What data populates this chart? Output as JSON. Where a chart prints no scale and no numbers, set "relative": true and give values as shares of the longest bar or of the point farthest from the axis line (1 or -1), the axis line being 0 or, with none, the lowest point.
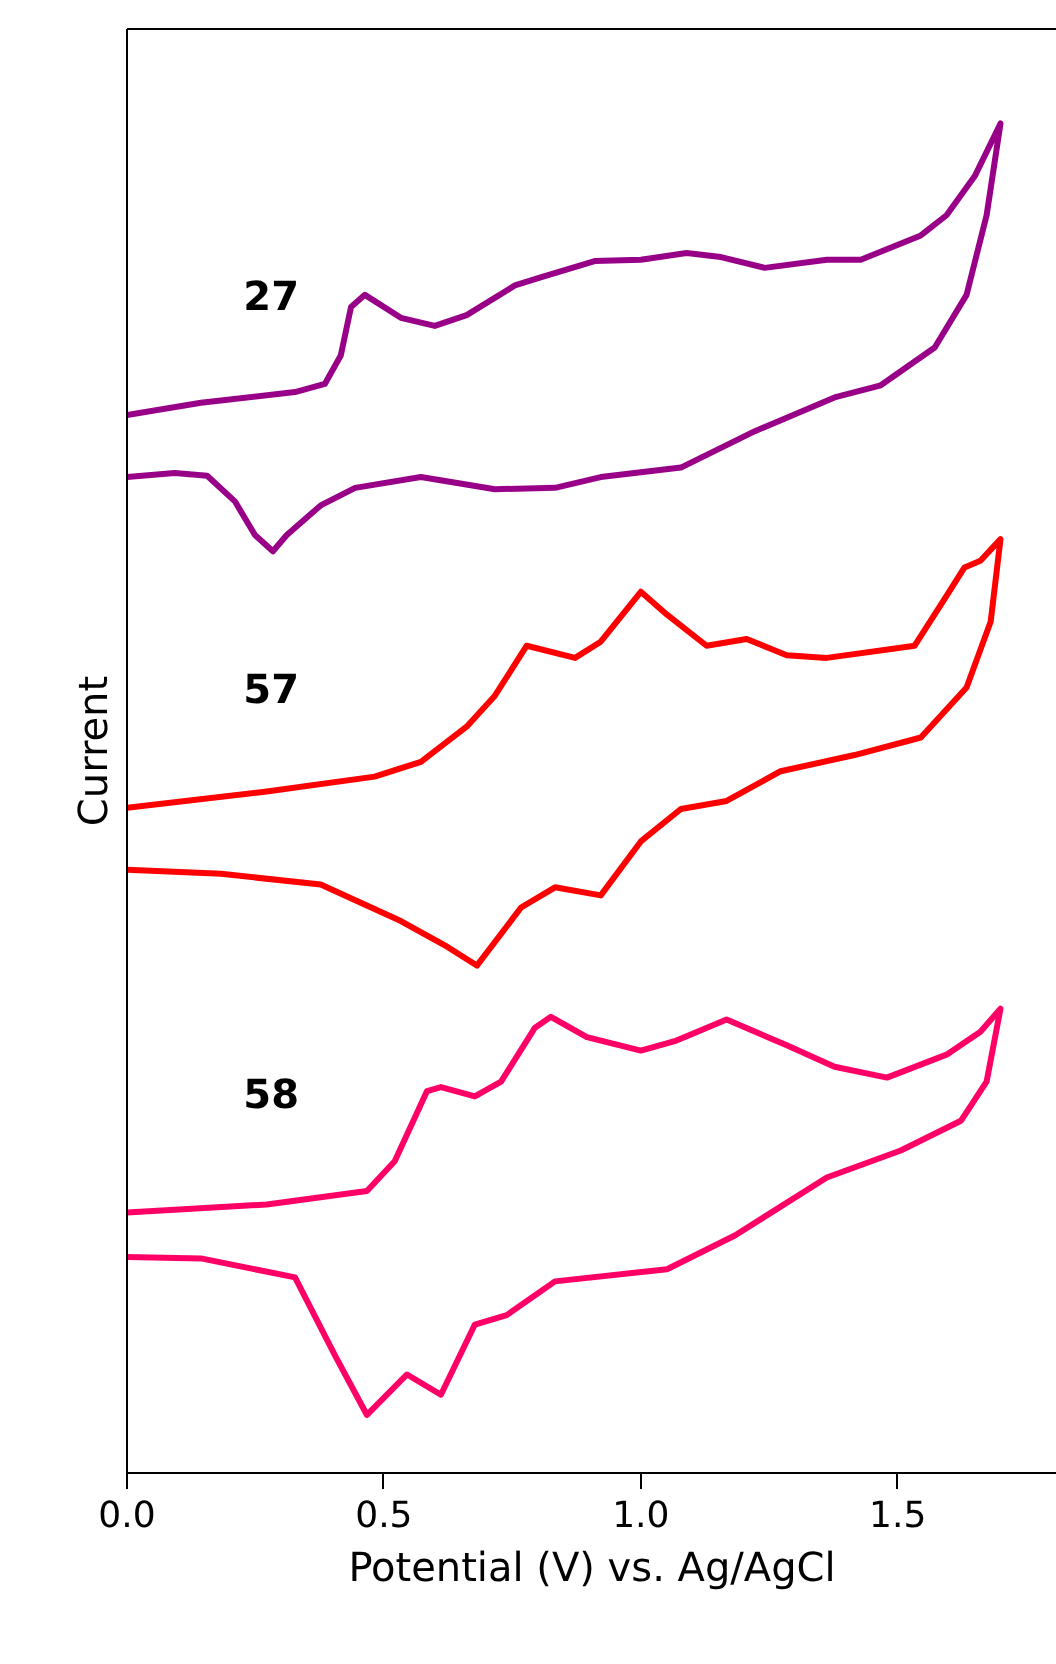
{
  "chart_data": {
    "type": "line",
    "relative": true,
    "xlabel": "Potential (V) vs. Ag/AgCl",
    "ylabel": "Current",
    "xlim": [
      0,
      1.81
    ],
    "xticks": [
      {
        "value": 0,
        "label": "0.0"
      },
      {
        "value": 0.5,
        "label": "0.5"
      },
      {
        "value": 1,
        "label": "1.0"
      },
      {
        "value": 1.5,
        "label": "1.5"
      }
    ],
    "tick_labels": "x",
    "grid": false,
    "series": [
      {
        "name": "27",
        "color": "#990088",
        "x": [
          0,
          0.144,
          0.327,
          0.385,
          0.416,
          0.436,
          0.463,
          0.533,
          0.599,
          0.661,
          0.755,
          0.805,
          0.91,
          1.0,
          1.089,
          1.156,
          1.241,
          1.362,
          1.428,
          1.545,
          1.595,
          1.65,
          1.7,
          1.673,
          1.634,
          1.572,
          1.467,
          1.377,
          1.222,
          1.078,
          0.922,
          0.833,
          0.716,
          0.572,
          0.444,
          0.377,
          0.311,
          0.284,
          0.249,
          0.21,
          0.156,
          0.093,
          0
        ],
        "values": [
          0.784,
          0.793,
          0.801,
          0.807,
          0.828,
          0.864,
          0.873,
          0.856,
          0.85,
          0.858,
          0.88,
          0.886,
          0.898,
          0.899,
          0.904,
          0.901,
          0.893,
          0.899,
          0.899,
          0.917,
          0.932,
          0.961,
          1.0,
          0.932,
          0.873,
          0.834,
          0.806,
          0.797,
          0.772,
          0.745,
          0.738,
          0.73,
          0.729,
          0.738,
          0.73,
          0.717,
          0.695,
          0.683,
          0.695,
          0.72,
          0.739,
          0.741,
          0.738
        ]
      },
      {
        "name": "57",
        "color": "#ff0000",
        "x": [
          0,
          0.272,
          0.482,
          0.572,
          0.661,
          0.716,
          0.778,
          0.872,
          0.922,
          1.0,
          1.051,
          1.128,
          1.206,
          1.284,
          1.362,
          1.533,
          1.595,
          1.63,
          1.661,
          1.7,
          1.681,
          1.634,
          1.545,
          1.416,
          1.272,
          1.167,
          1.078,
          1.0,
          0.922,
          0.833,
          0.767,
          0.681,
          0.623,
          0.533,
          0.377,
          0.183,
          0
        ],
        "values": [
          0.493,
          0.505,
          0.516,
          0.527,
          0.553,
          0.576,
          0.613,
          0.604,
          0.616,
          0.653,
          0.636,
          0.613,
          0.618,
          0.606,
          0.604,
          0.613,
          0.65,
          0.671,
          0.676,
          0.692,
          0.631,
          0.582,
          0.545,
          0.532,
          0.52,
          0.498,
          0.492,
          0.468,
          0.428,
          0.434,
          0.419,
          0.376,
          0.39,
          0.409,
          0.436,
          0.444,
          0.447
        ]
      },
      {
        "name": "58",
        "color": "#ff0066",
        "x": [
          0,
          0.272,
          0.467,
          0.521,
          0.584,
          0.611,
          0.677,
          0.728,
          0.794,
          0.825,
          0.895,
          1.0,
          1.066,
          1.167,
          1.284,
          1.377,
          1.479,
          1.595,
          1.661,
          1.7,
          1.673,
          1.623,
          1.506,
          1.362,
          1.183,
          1.051,
          0.833,
          0.739,
          0.677,
          0.611,
          0.545,
          0.467,
          0.405,
          0.327,
          0.144,
          0
        ],
        "values": [
          0.193,
          0.199,
          0.209,
          0.231,
          0.283,
          0.286,
          0.279,
          0.29,
          0.33,
          0.338,
          0.323,
          0.313,
          0.32,
          0.336,
          0.317,
          0.301,
          0.293,
          0.31,
          0.327,
          0.344,
          0.29,
          0.261,
          0.239,
          0.219,
          0.176,
          0.151,
          0.142,
          0.117,
          0.11,
          0.058,
          0.073,
          0.043,
          0.087,
          0.145,
          0.159,
          0.16
        ]
      }
    ]
  }
}
